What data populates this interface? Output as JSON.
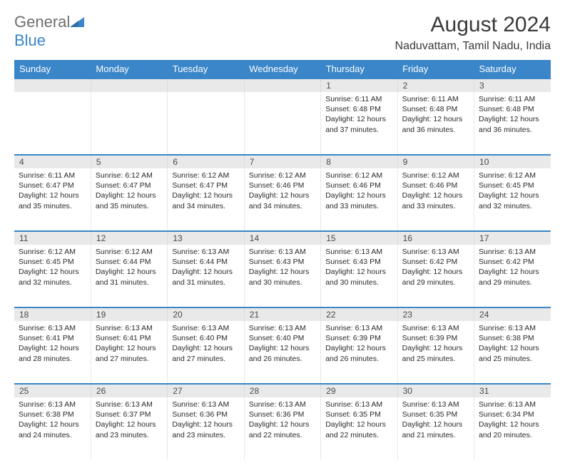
{
  "logo": {
    "text1": "General",
    "text2": "Blue"
  },
  "title": "August 2024",
  "location": "Naduvattam, Tamil Nadu, India",
  "colors": {
    "header_bg": "#3a86c8",
    "header_text": "#ffffff",
    "daynum_bg": "#e9e9e9",
    "border_accent": "#3a86c8",
    "cell_border": "#e8e8e8",
    "text": "#2a2a2a",
    "title_text": "#3a3a3a",
    "logo_gray": "#6e6e6e",
    "logo_blue": "#3a86c8"
  },
  "dayNames": [
    "Sunday",
    "Monday",
    "Tuesday",
    "Wednesday",
    "Thursday",
    "Friday",
    "Saturday"
  ],
  "weeks": [
    [
      null,
      null,
      null,
      null,
      {
        "n": "1",
        "sr": "6:11 AM",
        "ss": "6:48 PM",
        "dl": "12 hours and 37 minutes."
      },
      {
        "n": "2",
        "sr": "6:11 AM",
        "ss": "6:48 PM",
        "dl": "12 hours and 36 minutes."
      },
      {
        "n": "3",
        "sr": "6:11 AM",
        "ss": "6:48 PM",
        "dl": "12 hours and 36 minutes."
      }
    ],
    [
      {
        "n": "4",
        "sr": "6:11 AM",
        "ss": "6:47 PM",
        "dl": "12 hours and 35 minutes."
      },
      {
        "n": "5",
        "sr": "6:12 AM",
        "ss": "6:47 PM",
        "dl": "12 hours and 35 minutes."
      },
      {
        "n": "6",
        "sr": "6:12 AM",
        "ss": "6:47 PM",
        "dl": "12 hours and 34 minutes."
      },
      {
        "n": "7",
        "sr": "6:12 AM",
        "ss": "6:46 PM",
        "dl": "12 hours and 34 minutes."
      },
      {
        "n": "8",
        "sr": "6:12 AM",
        "ss": "6:46 PM",
        "dl": "12 hours and 33 minutes."
      },
      {
        "n": "9",
        "sr": "6:12 AM",
        "ss": "6:46 PM",
        "dl": "12 hours and 33 minutes."
      },
      {
        "n": "10",
        "sr": "6:12 AM",
        "ss": "6:45 PM",
        "dl": "12 hours and 32 minutes."
      }
    ],
    [
      {
        "n": "11",
        "sr": "6:12 AM",
        "ss": "6:45 PM",
        "dl": "12 hours and 32 minutes."
      },
      {
        "n": "12",
        "sr": "6:12 AM",
        "ss": "6:44 PM",
        "dl": "12 hours and 31 minutes."
      },
      {
        "n": "13",
        "sr": "6:13 AM",
        "ss": "6:44 PM",
        "dl": "12 hours and 31 minutes."
      },
      {
        "n": "14",
        "sr": "6:13 AM",
        "ss": "6:43 PM",
        "dl": "12 hours and 30 minutes."
      },
      {
        "n": "15",
        "sr": "6:13 AM",
        "ss": "6:43 PM",
        "dl": "12 hours and 30 minutes."
      },
      {
        "n": "16",
        "sr": "6:13 AM",
        "ss": "6:42 PM",
        "dl": "12 hours and 29 minutes."
      },
      {
        "n": "17",
        "sr": "6:13 AM",
        "ss": "6:42 PM",
        "dl": "12 hours and 29 minutes."
      }
    ],
    [
      {
        "n": "18",
        "sr": "6:13 AM",
        "ss": "6:41 PM",
        "dl": "12 hours and 28 minutes."
      },
      {
        "n": "19",
        "sr": "6:13 AM",
        "ss": "6:41 PM",
        "dl": "12 hours and 27 minutes."
      },
      {
        "n": "20",
        "sr": "6:13 AM",
        "ss": "6:40 PM",
        "dl": "12 hours and 27 minutes."
      },
      {
        "n": "21",
        "sr": "6:13 AM",
        "ss": "6:40 PM",
        "dl": "12 hours and 26 minutes."
      },
      {
        "n": "22",
        "sr": "6:13 AM",
        "ss": "6:39 PM",
        "dl": "12 hours and 26 minutes."
      },
      {
        "n": "23",
        "sr": "6:13 AM",
        "ss": "6:39 PM",
        "dl": "12 hours and 25 minutes."
      },
      {
        "n": "24",
        "sr": "6:13 AM",
        "ss": "6:38 PM",
        "dl": "12 hours and 25 minutes."
      }
    ],
    [
      {
        "n": "25",
        "sr": "6:13 AM",
        "ss": "6:38 PM",
        "dl": "12 hours and 24 minutes."
      },
      {
        "n": "26",
        "sr": "6:13 AM",
        "ss": "6:37 PM",
        "dl": "12 hours and 23 minutes."
      },
      {
        "n": "27",
        "sr": "6:13 AM",
        "ss": "6:36 PM",
        "dl": "12 hours and 23 minutes."
      },
      {
        "n": "28",
        "sr": "6:13 AM",
        "ss": "6:36 PM",
        "dl": "12 hours and 22 minutes."
      },
      {
        "n": "29",
        "sr": "6:13 AM",
        "ss": "6:35 PM",
        "dl": "12 hours and 22 minutes."
      },
      {
        "n": "30",
        "sr": "6:13 AM",
        "ss": "6:35 PM",
        "dl": "12 hours and 21 minutes."
      },
      {
        "n": "31",
        "sr": "6:13 AM",
        "ss": "6:34 PM",
        "dl": "12 hours and 20 minutes."
      }
    ]
  ],
  "labels": {
    "sunrise": "Sunrise:",
    "sunset": "Sunset:",
    "daylight": "Daylight:"
  }
}
